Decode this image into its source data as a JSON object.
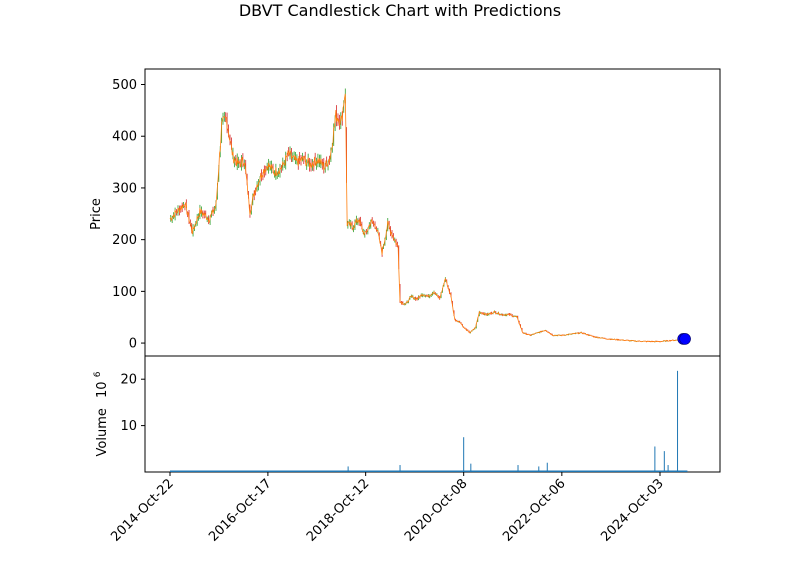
{
  "chart_data": [
    {
      "type": "candlestick",
      "title": "DBVT Candlestick Chart with Predictions",
      "ylabel": "Price",
      "ylim": [
        -25,
        530
      ],
      "yticks": [
        0,
        100,
        200,
        300,
        400,
        500
      ],
      "x_tick_labels": [
        "2014-Oct-22",
        "2016-Oct-17",
        "2018-Oct-12",
        "2020-Oct-08",
        "2022-Oct-06",
        "2024-Oct-03"
      ],
      "colors": {
        "up": "#2ca02c",
        "down": "#d62728",
        "line": "#ff7f0e",
        "prediction": "#0000ff"
      },
      "close_series": [
        {
          "x": "2014-Oct-22",
          "y": 240
        },
        {
          "x": "2014-Dec-15",
          "y": 255
        },
        {
          "x": "2015-Feb-10",
          "y": 270
        },
        {
          "x": "2015-Apr-06",
          "y": 215
        },
        {
          "x": "2015-Jun-01",
          "y": 255
        },
        {
          "x": "2015-Aug-10",
          "y": 240
        },
        {
          "x": "2015-Sep-28",
          "y": 265
        },
        {
          "x": "2015-Nov-09",
          "y": 420
        },
        {
          "x": "2015-Dec-14",
          "y": 435
        },
        {
          "x": "2016-Feb-01",
          "y": 360
        },
        {
          "x": "2016-Mar-14",
          "y": 345
        },
        {
          "x": "2016-Apr-25",
          "y": 355
        },
        {
          "x": "2016-Jun-06",
          "y": 255
        },
        {
          "x": "2016-Jul-18",
          "y": 300
        },
        {
          "x": "2016-Sep-05",
          "y": 330
        },
        {
          "x": "2016-Oct-17",
          "y": 345
        },
        {
          "x": "2016-Dec-05",
          "y": 330
        },
        {
          "x": "2017-Jan-30",
          "y": 340
        },
        {
          "x": "2017-Mar-20",
          "y": 365
        },
        {
          "x": "2017-May-15",
          "y": 350
        },
        {
          "x": "2017-Jul-10",
          "y": 355
        },
        {
          "x": "2017-Aug-28",
          "y": 345
        },
        {
          "x": "2017-Oct-23",
          "y": 355
        },
        {
          "x": "2017-Dec-11",
          "y": 340
        },
        {
          "x": "2018-Jan-22",
          "y": 360
        },
        {
          "x": "2018-Mar-05",
          "y": 440
        },
        {
          "x": "2018-Apr-16",
          "y": 430
        },
        {
          "x": "2018-May-14",
          "y": 490
        },
        {
          "x": "2018-May-28",
          "y": 230
        },
        {
          "x": "2018-Jul-09",
          "y": 225
        },
        {
          "x": "2018-Aug-20",
          "y": 240
        },
        {
          "x": "2018-Sep-24",
          "y": 215
        },
        {
          "x": "2018-Oct-12",
          "y": 210
        },
        {
          "x": "2018-Nov-19",
          "y": 235
        },
        {
          "x": "2018-Dec-31",
          "y": 225
        },
        {
          "x": "2019-Feb-11",
          "y": 175
        },
        {
          "x": "2019-Mar-25",
          "y": 230
        },
        {
          "x": "2019-May-06",
          "y": 205
        },
        {
          "x": "2019-Jun-10",
          "y": 185
        },
        {
          "x": "2019-Jun-24",
          "y": 80
        },
        {
          "x": "2019-Aug-05",
          "y": 75
        },
        {
          "x": "2019-Sep-16",
          "y": 90
        },
        {
          "x": "2019-Oct-28",
          "y": 85
        },
        {
          "x": "2019-Dec-09",
          "y": 95
        },
        {
          "x": "2020-Jan-20",
          "y": 90
        },
        {
          "x": "2020-Mar-02",
          "y": 100
        },
        {
          "x": "2020-Apr-13",
          "y": 85
        },
        {
          "x": "2020-May-25",
          "y": 125
        },
        {
          "x": "2020-Jul-06",
          "y": 90
        },
        {
          "x": "2020-Aug-03",
          "y": 45
        },
        {
          "x": "2020-Sep-14",
          "y": 40
        },
        {
          "x": "2020-Oct-08",
          "y": 30
        },
        {
          "x": "2020-Nov-23",
          "y": 20
        },
        {
          "x": "2021-Jan-04",
          "y": 30
        },
        {
          "x": "2021-Feb-01",
          "y": 60
        },
        {
          "x": "2021-Mar-29",
          "y": 55
        },
        {
          "x": "2021-May-24",
          "y": 60
        },
        {
          "x": "2021-Jul-19",
          "y": 55
        },
        {
          "x": "2021-Sep-13",
          "y": 55
        },
        {
          "x": "2021-Nov-08",
          "y": 50
        },
        {
          "x": "2021-Dec-20",
          "y": 20
        },
        {
          "x": "2022-Feb-14",
          "y": 15
        },
        {
          "x": "2022-Apr-11",
          "y": 20
        },
        {
          "x": "2022-Jun-06",
          "y": 25
        },
        {
          "x": "2022-Aug-01",
          "y": 15
        },
        {
          "x": "2022-Oct-06",
          "y": 15
        },
        {
          "x": "2022-Dec-05",
          "y": 17
        },
        {
          "x": "2023-Feb-27",
          "y": 20
        },
        {
          "x": "2023-Jun-05",
          "y": 12
        },
        {
          "x": "2023-Sep-11",
          "y": 8
        },
        {
          "x": "2023-Dec-18",
          "y": 6
        },
        {
          "x": "2024-Mar-25",
          "y": 4
        },
        {
          "x": "2024-Jul-01",
          "y": 3
        },
        {
          "x": "2024-Oct-03",
          "y": 3
        },
        {
          "x": "2024-Dec-23",
          "y": 5
        },
        {
          "x": "2025-Feb-24",
          "y": 6
        }
      ],
      "predictions": [
        {
          "x": "2025-Mar-24",
          "y": 8
        },
        {
          "x": "2025-Apr-07",
          "y": 8
        }
      ]
    },
    {
      "type": "bar",
      "ylabel": "Volume",
      "scale_label_base": "10",
      "scale_label_exp": "6",
      "ylim": [
        0,
        25
      ],
      "yticks": [
        10,
        20
      ],
      "color": "#1f77b4",
      "spikes": [
        {
          "x": "2018-Jun-04",
          "y": 1.2
        },
        {
          "x": "2019-Jun-24",
          "y": 1.5
        },
        {
          "x": "2020-Oct-08",
          "y": 7.5
        },
        {
          "x": "2020-Nov-30",
          "y": 1.8
        },
        {
          "x": "2021-Nov-15",
          "y": 1.5
        },
        {
          "x": "2022-Apr-18",
          "y": 1.2
        },
        {
          "x": "2022-Jun-20",
          "y": 2.0
        },
        {
          "x": "2024-Aug-26",
          "y": 5.5
        },
        {
          "x": "2024-Nov-04",
          "y": 4.5
        },
        {
          "x": "2024-Dec-02",
          "y": 1.5
        },
        {
          "x": "2025-Feb-10",
          "y": 21.8
        }
      ]
    }
  ]
}
